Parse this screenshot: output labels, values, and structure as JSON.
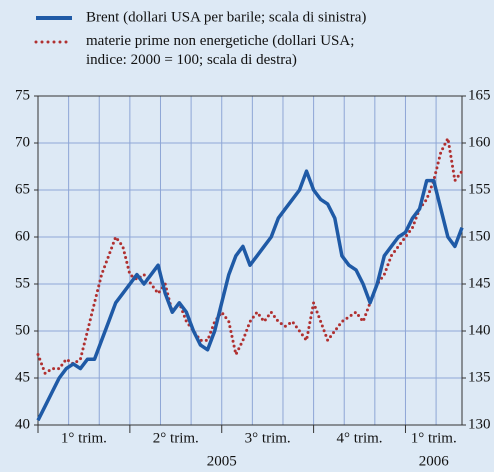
{
  "chart_data": {
    "type": "line",
    "categories": [
      null,
      null,
      null,
      null,
      null,
      null,
      null,
      null,
      null,
      null,
      null,
      null,
      null,
      null,
      null,
      null,
      null,
      null,
      null,
      null,
      null,
      null,
      null,
      null,
      null,
      null,
      null,
      null,
      null,
      null,
      null,
      null,
      null,
      null,
      null,
      null,
      null,
      null,
      null,
      null,
      null,
      null,
      null,
      null,
      null,
      null,
      null,
      null,
      null,
      null,
      null,
      null,
      null,
      null,
      null,
      null,
      null,
      null,
      null,
      null,
      null
    ],
    "quarters": [
      "1° trim.",
      "2° trim.",
      "3° trim.",
      "4° trim.",
      "1° trim."
    ],
    "years": [
      "2005",
      "2006"
    ],
    "series": [
      {
        "name": "Brent (dollari USA per barile; scala di sinistra)",
        "color": "#1f5aa6",
        "axis": "y",
        "values": [
          40.5,
          42,
          43.5,
          45,
          46,
          46.5,
          46,
          47,
          47,
          49,
          51,
          53,
          54,
          55,
          56,
          55,
          56,
          57,
          54,
          52,
          53,
          52,
          50,
          48.5,
          48,
          50,
          53,
          56,
          58,
          59,
          57,
          58,
          59,
          60,
          62,
          63,
          64,
          65,
          67,
          65,
          64,
          63.5,
          62,
          58,
          57,
          56.5,
          55,
          53,
          55,
          58,
          59,
          60,
          60.5,
          62,
          63,
          66,
          66,
          63,
          60,
          59,
          61
        ]
      },
      {
        "name": "materie prime non energetiche (dollari USA;\nindice: 2000 = 100; scala di destra)",
        "color": "#b03030",
        "axis": "y2",
        "values": [
          137.5,
          135.5,
          136,
          136,
          137,
          136.5,
          137,
          140,
          143,
          146,
          148,
          150,
          149,
          146,
          145.5,
          146,
          145,
          144,
          145,
          142,
          143,
          141,
          140,
          139,
          139,
          141,
          142,
          141,
          137.5,
          139,
          141,
          142,
          141,
          142,
          141,
          140.5,
          141,
          140,
          139,
          143,
          141,
          139,
          140,
          141,
          141.5,
          142,
          141,
          143,
          145,
          146,
          148,
          149,
          150,
          151,
          153,
          154,
          156,
          159,
          160.5,
          156,
          157
        ]
      }
    ],
    "ylim": [
      40,
      75
    ],
    "yticks": [
      40,
      45,
      50,
      55,
      60,
      65,
      70,
      75
    ],
    "y2lim": [
      130,
      165
    ],
    "y2ticks": [
      130,
      135,
      140,
      145,
      150,
      155,
      160,
      165
    ],
    "grid": true
  }
}
